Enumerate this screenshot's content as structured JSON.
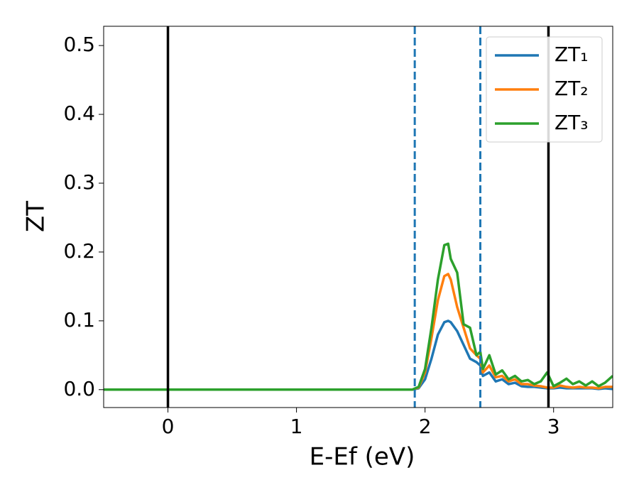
{
  "chart_data": {
    "type": "line",
    "x_label": "E-Ef (eV)",
    "y_label": "ZT",
    "x": [
      -0.5,
      1.8,
      1.9,
      1.95,
      2.0,
      2.05,
      2.1,
      2.15,
      2.18,
      2.2,
      2.25,
      2.3,
      2.35,
      2.4,
      2.43,
      2.45,
      2.5,
      2.55,
      2.6,
      2.65,
      2.7,
      2.75,
      2.8,
      2.85,
      2.9,
      2.95,
      3.0,
      3.05,
      3.1,
      3.15,
      3.2,
      3.25,
      3.3,
      3.35,
      3.4,
      3.46
    ],
    "series": [
      {
        "name": "ZT₁",
        "color": "#1f77b4",
        "values": [
          0,
          0,
          0,
          0.002,
          0.015,
          0.045,
          0.08,
          0.098,
          0.1,
          0.098,
          0.085,
          0.065,
          0.045,
          0.04,
          0.035,
          0.02,
          0.025,
          0.012,
          0.015,
          0.008,
          0.01,
          0.005,
          0.004,
          0.004,
          0.003,
          0.002,
          0.002,
          0.003,
          0.002,
          0.002,
          0.002,
          0.002,
          0.002,
          0.001,
          0.002,
          0.001
        ]
      },
      {
        "name": "ZT₂",
        "color": "#ff7f0e",
        "values": [
          0,
          0,
          0,
          0.003,
          0.025,
          0.075,
          0.13,
          0.165,
          0.168,
          0.16,
          0.12,
          0.09,
          0.06,
          0.05,
          0.045,
          0.025,
          0.035,
          0.018,
          0.02,
          0.012,
          0.015,
          0.008,
          0.008,
          0.006,
          0.005,
          0.003,
          0.003,
          0.006,
          0.004,
          0.003,
          0.004,
          0.003,
          0.003,
          0.002,
          0.004,
          0.004
        ]
      },
      {
        "name": "ZT₃",
        "color": "#2ca02c",
        "values": [
          0,
          0,
          0,
          0.004,
          0.03,
          0.09,
          0.16,
          0.21,
          0.212,
          0.19,
          0.17,
          0.095,
          0.09,
          0.05,
          0.055,
          0.03,
          0.05,
          0.022,
          0.028,
          0.015,
          0.02,
          0.012,
          0.014,
          0.008,
          0.012,
          0.025,
          0.005,
          0.01,
          0.016,
          0.008,
          0.012,
          0.006,
          0.012,
          0.005,
          0.01,
          0.02
        ]
      }
    ],
    "vlines": [
      {
        "x": 0,
        "color": "#000000",
        "style": "solid"
      },
      {
        "x": 1.92,
        "color": "#1f77b4",
        "style": "dashed"
      },
      {
        "x": 2.43,
        "color": "#1f77b4",
        "style": "dashed"
      },
      {
        "x": 2.96,
        "color": "#000000",
        "style": "solid"
      }
    ],
    "xlim": [
      -0.5,
      3.46
    ],
    "ylim": [
      -0.026,
      0.528
    ],
    "xticks": [
      0,
      1,
      2,
      3
    ],
    "yticks": [
      {
        "value": 0,
        "label": "0.0"
      },
      {
        "value": 0.1,
        "label": "0.1"
      },
      {
        "value": 0.2,
        "label": "0.2"
      },
      {
        "value": 0.3,
        "label": "0.3"
      },
      {
        "value": 0.4,
        "label": "0.4"
      },
      {
        "value": 0.5,
        "label": "0.5"
      }
    ],
    "legend": "upper right",
    "grid": false
  }
}
